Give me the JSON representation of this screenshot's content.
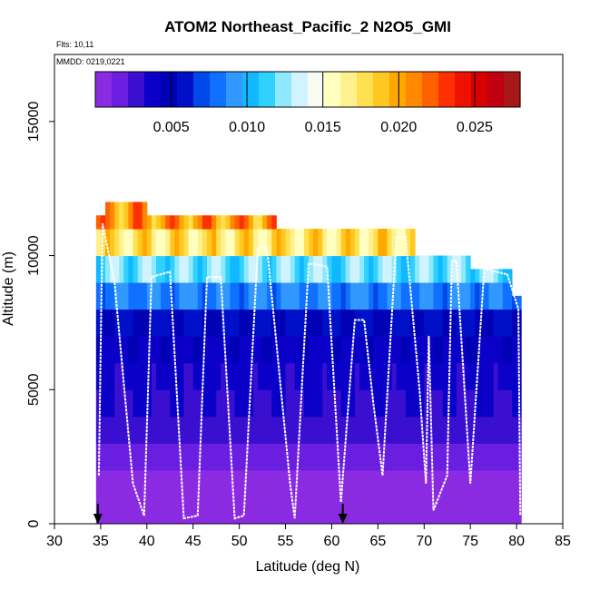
{
  "chart_data": {
    "type": "heatmap",
    "title": "ATOM2 Northeast_Pacific_2 N2O5_GMI",
    "flights_text": "Flts: 10,11",
    "date_text": "MMDD: 0219,0221",
    "xlabel": "Latitude (deg N)",
    "ylabel": "Altitude (m)",
    "xlim": [
      30,
      85
    ],
    "ylim": [
      0,
      17500
    ],
    "xticks": [
      "30",
      "35",
      "40",
      "45",
      "50",
      "55",
      "60",
      "65",
      "70",
      "75",
      "80",
      "85"
    ],
    "yticks": [
      "0",
      "5000",
      "10000",
      "15000"
    ],
    "colorbar": {
      "min": 0,
      "max": 0.028,
      "ticks": [
        "0.005",
        "0.010",
        "0.015",
        "0.020",
        "0.025"
      ],
      "colors": [
        "#8a2be2",
        "#6a1fe0",
        "#3a0fd0",
        "#0a00c8",
        "#0000b4",
        "#0010c8",
        "#0048e8",
        "#1070ff",
        "#3098ff",
        "#10b8ff",
        "#30d0ff",
        "#90e8ff",
        "#d0f4ff",
        "#f8fcf0",
        "#ffffc0",
        "#fff090",
        "#ffe050",
        "#ffc820",
        "#ffa800",
        "#ff8800",
        "#ff6000",
        "#ff3000",
        "#ee1000",
        "#d80000",
        "#c00010",
        "#a81818"
      ]
    },
    "arrows_lat": [
      34.7,
      61.2
    ],
    "altitude_profile_levels": [
      {
        "alt": 500,
        "value": 0.0003
      },
      {
        "alt": 1500,
        "value": 0.0008
      },
      {
        "alt": 2500,
        "value": 0.0016
      },
      {
        "alt": 3500,
        "value": 0.0026
      },
      {
        "alt": 4500,
        "value": 0.0032
      },
      {
        "alt": 5500,
        "value": 0.0036
      },
      {
        "alt": 6500,
        "value": 0.004
      },
      {
        "alt": 7500,
        "value": 0.0055
      },
      {
        "alt": 8500,
        "value": 0.0085
      },
      {
        "alt": 9500,
        "value": 0.012
      },
      {
        "alt": 10500,
        "value": 0.0175
      },
      {
        "alt": 11500,
        "value": 0.0205
      }
    ],
    "flight_track": [
      {
        "lat": 34.8,
        "alt": 1800
      },
      {
        "lat": 35.2,
        "alt": 11200
      },
      {
        "lat": 36.5,
        "alt": 9000
      },
      {
        "lat": 38.5,
        "alt": 1500
      },
      {
        "lat": 39.7,
        "alt": 300
      },
      {
        "lat": 40.5,
        "alt": 9200
      },
      {
        "lat": 42.5,
        "alt": 9400
      },
      {
        "lat": 44.0,
        "alt": 200
      },
      {
        "lat": 45.5,
        "alt": 300
      },
      {
        "lat": 46.5,
        "alt": 9200
      },
      {
        "lat": 48.0,
        "alt": 9200
      },
      {
        "lat": 49.5,
        "alt": 200
      },
      {
        "lat": 50.5,
        "alt": 300
      },
      {
        "lat": 52.0,
        "alt": 10300
      },
      {
        "lat": 53.0,
        "alt": 10300
      },
      {
        "lat": 55.5,
        "alt": 1500
      },
      {
        "lat": 56.0,
        "alt": 200
      },
      {
        "lat": 57.5,
        "alt": 9700
      },
      {
        "lat": 59.5,
        "alt": 9600
      },
      {
        "lat": 61.0,
        "alt": 800
      },
      {
        "lat": 62.5,
        "alt": 7600
      },
      {
        "lat": 63.5,
        "alt": 7600
      },
      {
        "lat": 64.5,
        "alt": 4500
      },
      {
        "lat": 65.5,
        "alt": 1800
      },
      {
        "lat": 67.0,
        "alt": 10700
      },
      {
        "lat": 68.0,
        "alt": 10700
      },
      {
        "lat": 69.5,
        "alt": 5000
      },
      {
        "lat": 70.2,
        "alt": 1500
      },
      {
        "lat": 70.5,
        "alt": 7000
      },
      {
        "lat": 71.0,
        "alt": 500
      },
      {
        "lat": 72.5,
        "alt": 1800
      },
      {
        "lat": 73.0,
        "alt": 9800
      },
      {
        "lat": 73.5,
        "alt": 9800
      },
      {
        "lat": 75.0,
        "alt": 1500
      },
      {
        "lat": 76.5,
        "alt": 9500
      },
      {
        "lat": 79.0,
        "alt": 9300
      },
      {
        "lat": 80.2,
        "alt": 8000
      },
      {
        "lat": 80.4,
        "alt": 300
      }
    ]
  }
}
